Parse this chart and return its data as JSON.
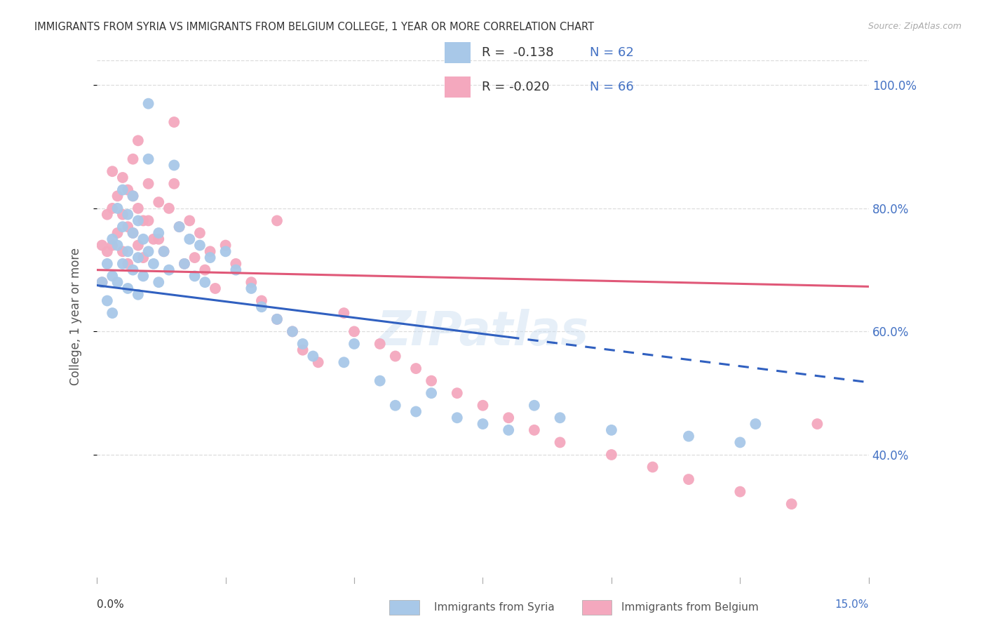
{
  "title": "IMMIGRANTS FROM SYRIA VS IMMIGRANTS FROM BELGIUM COLLEGE, 1 YEAR OR MORE CORRELATION CHART",
  "source": "Source: ZipAtlas.com",
  "ylabel": "College, 1 year or more",
  "xmin": 0.0,
  "xmax": 0.15,
  "ymin": 0.2,
  "ymax": 1.05,
  "yticks": [
    0.4,
    0.6,
    0.8,
    1.0
  ],
  "ytick_labels": [
    "40.0%",
    "60.0%",
    "80.0%",
    "100.0%"
  ],
  "syria_color": "#a8c8e8",
  "belgium_color": "#f4a8be",
  "syria_line_color": "#3060c0",
  "belgium_line_color": "#e05878",
  "syria_line_y0": 0.675,
  "syria_line_slope": -1.05,
  "syria_line_solid_end": 0.08,
  "belgium_line_y0": 0.7,
  "belgium_line_slope": -0.18,
  "background_color": "#ffffff",
  "grid_color": "#dddddd",
  "syria_scatter_x": [
    0.001,
    0.002,
    0.002,
    0.003,
    0.003,
    0.003,
    0.004,
    0.004,
    0.004,
    0.005,
    0.005,
    0.005,
    0.006,
    0.006,
    0.006,
    0.007,
    0.007,
    0.007,
    0.008,
    0.008,
    0.008,
    0.009,
    0.009,
    0.01,
    0.01,
    0.01,
    0.011,
    0.012,
    0.012,
    0.013,
    0.014,
    0.015,
    0.016,
    0.017,
    0.018,
    0.019,
    0.02,
    0.021,
    0.022,
    0.025,
    0.027,
    0.03,
    0.032,
    0.035,
    0.038,
    0.04,
    0.042,
    0.048,
    0.05,
    0.055,
    0.058,
    0.062,
    0.065,
    0.07,
    0.075,
    0.08,
    0.085,
    0.09,
    0.1,
    0.115,
    0.125,
    0.128
  ],
  "syria_scatter_y": [
    0.68,
    0.71,
    0.65,
    0.75,
    0.69,
    0.63,
    0.8,
    0.74,
    0.68,
    0.83,
    0.77,
    0.71,
    0.79,
    0.73,
    0.67,
    0.82,
    0.76,
    0.7,
    0.78,
    0.72,
    0.66,
    0.75,
    0.69,
    0.97,
    0.88,
    0.73,
    0.71,
    0.76,
    0.68,
    0.73,
    0.7,
    0.87,
    0.77,
    0.71,
    0.75,
    0.69,
    0.74,
    0.68,
    0.72,
    0.73,
    0.7,
    0.67,
    0.64,
    0.62,
    0.6,
    0.58,
    0.56,
    0.55,
    0.58,
    0.52,
    0.48,
    0.47,
    0.5,
    0.46,
    0.45,
    0.44,
    0.48,
    0.46,
    0.44,
    0.43,
    0.42,
    0.45
  ],
  "belgium_scatter_x": [
    0.001,
    0.001,
    0.002,
    0.002,
    0.003,
    0.003,
    0.003,
    0.004,
    0.004,
    0.005,
    0.005,
    0.005,
    0.006,
    0.006,
    0.006,
    0.007,
    0.007,
    0.007,
    0.008,
    0.008,
    0.009,
    0.009,
    0.01,
    0.01,
    0.011,
    0.012,
    0.012,
    0.013,
    0.014,
    0.015,
    0.016,
    0.017,
    0.018,
    0.019,
    0.02,
    0.021,
    0.022,
    0.023,
    0.025,
    0.027,
    0.03,
    0.032,
    0.035,
    0.038,
    0.04,
    0.043,
    0.048,
    0.05,
    0.055,
    0.058,
    0.062,
    0.065,
    0.07,
    0.075,
    0.08,
    0.085,
    0.09,
    0.1,
    0.108,
    0.115,
    0.125,
    0.135,
    0.14,
    0.008,
    0.015,
    0.035
  ],
  "belgium_scatter_y": [
    0.74,
    0.68,
    0.79,
    0.73,
    0.86,
    0.8,
    0.74,
    0.82,
    0.76,
    0.85,
    0.79,
    0.73,
    0.83,
    0.77,
    0.71,
    0.88,
    0.82,
    0.76,
    0.8,
    0.74,
    0.78,
    0.72,
    0.84,
    0.78,
    0.75,
    0.81,
    0.75,
    0.73,
    0.8,
    0.94,
    0.77,
    0.71,
    0.78,
    0.72,
    0.76,
    0.7,
    0.73,
    0.67,
    0.74,
    0.71,
    0.68,
    0.65,
    0.62,
    0.6,
    0.57,
    0.55,
    0.63,
    0.6,
    0.58,
    0.56,
    0.54,
    0.52,
    0.5,
    0.48,
    0.46,
    0.44,
    0.42,
    0.4,
    0.38,
    0.36,
    0.34,
    0.32,
    0.45,
    0.91,
    0.84,
    0.78
  ]
}
